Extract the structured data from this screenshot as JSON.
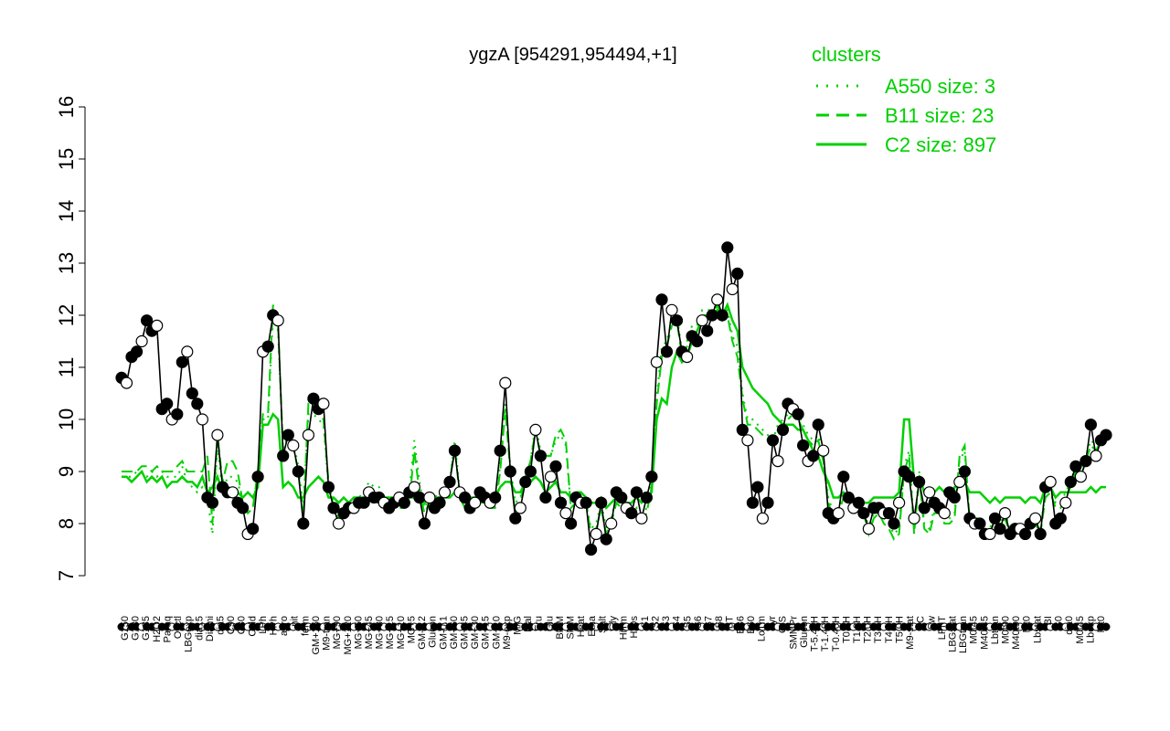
{
  "chart_data": {
    "type": "line",
    "title": "ygzA [954291,954494,+1]",
    "xlabel": "",
    "ylabel": "",
    "ylim": [
      7,
      16
    ],
    "yticks": [
      7,
      8,
      9,
      10,
      11,
      12,
      13,
      14,
      15,
      16
    ],
    "grid": false,
    "legend": {
      "title": "clusters",
      "placement": "top-right",
      "entries": [
        {
          "label": "A550 size: 3",
          "style": "dotted"
        },
        {
          "label": "B11 size: 23",
          "style": "dashed"
        },
        {
          "label": "C2 size: 897",
          "style": "solid"
        }
      ]
    },
    "colors": {
      "clusters": "#00d000",
      "points": "#000000"
    },
    "x_tick_labels": [
      "G150",
      "G180",
      "G135",
      "H2O2",
      "Paraq",
      "Oxctl",
      "LBGexp",
      "dia15",
      "Diami",
      "dia5",
      "C90",
      "C30",
      "Cold",
      "LPh",
      "HPh",
      "aero",
      "nit",
      "ferm",
      "GM+150",
      "M9-tran",
      "MG+90",
      "MG+120",
      "MG+60",
      "MG+45",
      "MG+30",
      "MG+15",
      "MG+10",
      "MG+5",
      "GM-0.2",
      "Glucon",
      "GM-0.1",
      "GM+60",
      "GM+45",
      "GM+30",
      "GM+15",
      "GM+10",
      "M9-exp",
      "M/G",
      "Mal",
      "Fru",
      "Glu",
      "BMM",
      "SMM",
      "Heat",
      "Etha",
      "Salt",
      "Gly",
      "HiTm",
      "HiOs",
      "S1",
      "S2",
      "S3",
      "S4",
      "S5",
      "S6",
      "S7",
      "S8",
      "BT",
      "B36",
      "B60",
      "LoTm",
      "Pyr",
      "G/S",
      "SMMPr",
      "Glucon",
      "T-5.40H",
      "T-1.40H",
      "T-0.40H",
      "T0.0H",
      "T1.0H",
      "T2.0H",
      "T3.0H",
      "T4.0H",
      "T5.0H",
      "M9-stat",
      "BC",
      "Sw",
      "LPhT",
      "LBGstat",
      "LBGtran",
      "M0t45",
      "M40t45",
      "Lbtran",
      "M0t90",
      "M40t90",
      "Mt0",
      "Lbstat",
      "BI",
      "S0",
      "dia0",
      "M0t45",
      "Lbexp",
      "Mt0"
    ],
    "series": [
      {
        "values": [
          10.8,
          10.7,
          11.2,
          11.3,
          11.5,
          11.9,
          11.7,
          11.8,
          10.2,
          10.3,
          10.0,
          10.1,
          11.1,
          11.3,
          10.5,
          10.3,
          10.0,
          8.5,
          8.4,
          9.7,
          8.7,
          8.6,
          8.6,
          8.4,
          8.3,
          7.8,
          7.9,
          8.9,
          11.3,
          11.4,
          12.0,
          11.9,
          9.3,
          9.7,
          9.5,
          9.0,
          8.0,
          9.7,
          10.4,
          10.2,
          10.3,
          8.7,
          8.3,
          8.0,
          8.2,
          8.3,
          8.3,
          8.4,
          8.4,
          8.6,
          8.5,
          8.5,
          8.4,
          8.3,
          8.4,
          8.5,
          8.4,
          8.6,
          8.7,
          8.5,
          8.0,
          8.5,
          8.3,
          8.4,
          8.6,
          8.8,
          9.4,
          8.6,
          8.5,
          8.3,
          8.4,
          8.6,
          8.5,
          8.4,
          8.5,
          9.4,
          10.7,
          9.0,
          8.1,
          8.3,
          8.8,
          9.0,
          9.8,
          9.3,
          8.5,
          8.9,
          9.1,
          8.4,
          8.2,
          8.0,
          8.5,
          8.4,
          8.4,
          7.5,
          7.8,
          8.4,
          7.7,
          8.0,
          8.6,
          8.5,
          8.3,
          8.2,
          8.6,
          8.1,
          8.5,
          8.9,
          11.1,
          12.3,
          11.3,
          12.1,
          11.9,
          11.3,
          11.2,
          11.6,
          11.5,
          11.9,
          11.7,
          12.0,
          12.3,
          12.0,
          13.3,
          12.5,
          12.8,
          9.8,
          9.6,
          8.4,
          8.7,
          8.1,
          8.4,
          9.6,
          9.2,
          9.8,
          10.3,
          10.2,
          10.1,
          9.5,
          9.2,
          9.3,
          9.9,
          9.4,
          8.2,
          8.1,
          8.2,
          8.9,
          8.5,
          8.3,
          8.4,
          8.2,
          7.9,
          8.3,
          8.3,
          8.2,
          8.2,
          8.0,
          8.4,
          9.0,
          8.9,
          8.1,
          8.8,
          8.3,
          8.6,
          8.4,
          8.3,
          8.2,
          8.6,
          8.5,
          8.8,
          9.0,
          8.1,
          8.0,
          8.0,
          7.8,
          7.8,
          8.1,
          7.9,
          8.2,
          7.8,
          7.9,
          7.9,
          7.8,
          8.0,
          8.1,
          7.8,
          8.7,
          8.8,
          8.0,
          8.1,
          8.4,
          8.8,
          9.1,
          8.9,
          9.2,
          9.9,
          9.3,
          9.6,
          9.7
        ]
      },
      {
        "name": "C2 size: 897",
        "values": [
          8.9,
          8.9,
          8.8,
          8.9,
          9.0,
          8.8,
          8.9,
          8.8,
          8.9,
          8.7,
          8.8,
          8.8,
          8.9,
          8.8,
          8.8,
          8.7,
          8.9,
          8.6,
          8.7,
          8.9,
          8.6,
          8.6,
          8.5,
          8.6,
          8.5,
          8.6,
          8.5,
          8.7,
          9.9,
          9.9,
          10.1,
          10.0,
          8.7,
          8.8,
          8.7,
          8.5,
          8.5,
          8.7,
          8.8,
          8.9,
          8.8,
          8.5,
          8.5,
          8.4,
          8.5,
          8.4,
          8.5,
          8.5,
          8.5,
          8.5,
          8.5,
          8.5,
          8.5,
          8.5,
          8.5,
          8.5,
          8.5,
          8.5,
          8.5,
          8.5,
          8.4,
          8.5,
          8.5,
          8.5,
          8.5,
          8.5,
          8.6,
          8.5,
          8.5,
          8.5,
          8.5,
          8.5,
          8.5,
          8.5,
          8.5,
          8.7,
          8.8,
          8.8,
          8.6,
          8.6,
          8.8,
          8.8,
          8.9,
          8.8,
          8.6,
          8.7,
          8.8,
          8.6,
          8.6,
          8.5,
          8.6,
          8.6,
          8.5,
          8.4,
          8.4,
          8.5,
          8.3,
          8.4,
          8.5,
          8.5,
          8.4,
          8.4,
          8.5,
          8.4,
          8.5,
          8.6,
          10.0,
          10.4,
          10.3,
          11.0,
          11.3,
          11.1,
          11.2,
          11.5,
          11.7,
          11.9,
          11.9,
          12.0,
          12.1,
          12.0,
          12.2,
          11.9,
          11.7,
          11.0,
          10.8,
          10.6,
          10.5,
          10.4,
          10.3,
          10.1,
          10.0,
          9.9,
          9.9,
          9.9,
          9.8,
          9.8,
          9.6,
          9.4,
          9.3,
          9.0,
          8.8,
          8.5,
          8.5,
          8.6,
          8.5,
          8.5,
          8.4,
          8.4,
          8.4,
          8.5,
          8.5,
          8.5,
          8.5,
          8.5,
          8.6,
          10.0,
          10.0,
          8.8,
          8.9,
          8.6,
          8.5,
          8.6,
          8.7,
          8.6,
          8.5,
          8.7,
          8.7,
          8.8,
          8.6,
          8.6,
          8.6,
          8.5,
          8.4,
          8.5,
          8.4,
          8.5,
          8.5,
          8.5,
          8.5,
          8.4,
          8.5,
          8.5,
          8.4,
          8.7,
          8.7,
          8.5,
          8.6,
          8.6,
          8.6,
          8.6,
          8.6,
          8.6,
          8.7,
          8.6,
          8.7,
          8.7
        ]
      },
      {
        "name": "B11 size: 23",
        "values": [
          9.0,
          9.0,
          9.0,
          9.0,
          9.1,
          9.1,
          9.0,
          9.1,
          9.0,
          9.0,
          9.0,
          9.1,
          9.2,
          9.0,
          9.0,
          9.0,
          9.0,
          9.3,
          8.0,
          9.7,
          8.8,
          9.2,
          9.2,
          9.0,
          8.4,
          8.2,
          8.3,
          9.0,
          10.1,
          10.1,
          12.2,
          11.8,
          9.4,
          9.7,
          9.5,
          9.0,
          8.1,
          10.3,
          10.3,
          10.1,
          10.0,
          8.8,
          8.3,
          8.1,
          8.1,
          8.3,
          8.3,
          8.3,
          8.4,
          8.5,
          8.5,
          8.5,
          8.3,
          8.3,
          8.3,
          8.3,
          8.3,
          8.4,
          9.4,
          8.6,
          8.2,
          8.4,
          8.4,
          8.5,
          8.6,
          8.8,
          9.5,
          8.5,
          8.3,
          8.3,
          8.3,
          8.4,
          8.4,
          8.3,
          8.3,
          9.0,
          10.2,
          9.0,
          8.2,
          8.4,
          8.9,
          9.2,
          9.8,
          9.3,
          9.3,
          9.3,
          9.7,
          9.8,
          9.6,
          8.3,
          8.4,
          8.4,
          8.4,
          7.8,
          7.9,
          8.3,
          7.8,
          8.0,
          8.4,
          8.3,
          8.3,
          8.1,
          8.2,
          8.0,
          8.2,
          8.7,
          10.3,
          11.2,
          11.4,
          11.8,
          11.9,
          11.2,
          11.4,
          11.7,
          11.7,
          12.0,
          12.0,
          12.0,
          12.2,
          11.9,
          12.0,
          11.5,
          11.2,
          10.4,
          9.9,
          9.9,
          9.8,
          9.7,
          9.6,
          9.6,
          9.8,
          9.9,
          10.0,
          10.1,
          10.0,
          9.8,
          9.6,
          9.5,
          9.6,
          9.2,
          8.4,
          8.1,
          8.2,
          8.5,
          8.4,
          8.3,
          8.2,
          8.2,
          7.8,
          8.1,
          8.2,
          8.0,
          7.9,
          7.7,
          7.8,
          9.0,
          9.3,
          7.8,
          8.9,
          7.9,
          7.8,
          8.2,
          8.2,
          8.0,
          8.0,
          8.1,
          9.3,
          9.5,
          8.0,
          8.0,
          8.0,
          7.8,
          7.8,
          8.1,
          7.9,
          8.1,
          7.8,
          7.9,
          7.8,
          7.8,
          8.0,
          8.0,
          7.8,
          8.5,
          8.6,
          8.3,
          8.3,
          8.5,
          8.7,
          9.0,
          8.9,
          9.2,
          9.5,
          9.4,
          9.6,
          9.6
        ]
      },
      {
        "name": "A550 size: 3",
        "values": [
          8.9,
          8.9,
          8.9,
          9.0,
          9.0,
          8.9,
          9.0,
          8.9,
          9.0,
          8.9,
          8.9,
          8.9,
          9.1,
          8.8,
          8.7,
          8.6,
          8.7,
          8.5,
          7.8,
          9.5,
          8.6,
          8.9,
          8.9,
          8.8,
          8.4,
          8.2,
          8.3,
          9.0,
          10.0,
          10.0,
          12.0,
          11.7,
          9.4,
          9.7,
          9.6,
          9.1,
          8.3,
          10.1,
          10.1,
          10.0,
          9.9,
          8.7,
          8.4,
          8.2,
          8.3,
          8.4,
          8.4,
          8.5,
          8.6,
          8.8,
          8.7,
          8.7,
          8.5,
          8.4,
          8.5,
          8.5,
          8.5,
          8.6,
          9.6,
          8.8,
          8.3,
          8.5,
          8.5,
          8.6,
          8.7,
          8.8,
          9.6,
          8.6,
          8.4,
          8.4,
          8.5,
          8.6,
          8.6,
          8.5,
          8.5,
          9.1,
          10.3,
          9.1,
          8.4,
          8.5,
          8.9,
          9.2,
          9.9,
          9.4,
          9.3,
          9.3,
          9.6,
          9.7,
          9.5,
          8.3,
          8.4,
          8.4,
          8.4,
          7.9,
          8.0,
          8.4,
          7.9,
          8.1,
          8.5,
          8.4,
          8.4,
          8.2,
          8.3,
          8.1,
          8.3,
          8.8,
          10.4,
          11.4,
          11.5,
          11.9,
          12.0,
          11.3,
          11.5,
          11.8,
          11.8,
          12.1,
          12.1,
          12.1,
          12.2,
          12.0,
          12.1,
          11.6,
          11.4,
          10.5,
          10.0,
          10.0,
          9.9,
          9.8,
          9.7,
          9.6,
          9.9,
          10.0,
          10.1,
          10.2,
          10.1,
          9.9,
          9.7,
          9.6,
          9.7,
          9.3,
          8.5,
          8.2,
          8.3,
          8.6,
          8.5,
          8.4,
          8.3,
          8.3,
          7.9,
          8.2,
          8.3,
          8.1,
          8.0,
          7.8,
          7.9,
          9.1,
          9.4,
          7.9,
          9.0,
          8.0,
          7.9,
          8.3,
          8.3,
          8.1,
          8.1,
          8.2,
          9.2,
          9.4,
          8.1,
          8.1,
          8.1,
          7.9,
          7.9,
          8.2,
          8.0,
          8.2,
          7.9,
          8.0,
          7.9,
          7.9,
          8.1,
          8.1,
          7.9,
          8.6,
          8.7,
          8.4,
          8.4,
          8.6,
          8.8,
          9.1,
          9.0,
          9.3,
          9.6,
          9.5,
          9.7,
          9.7
        ]
      }
    ]
  }
}
